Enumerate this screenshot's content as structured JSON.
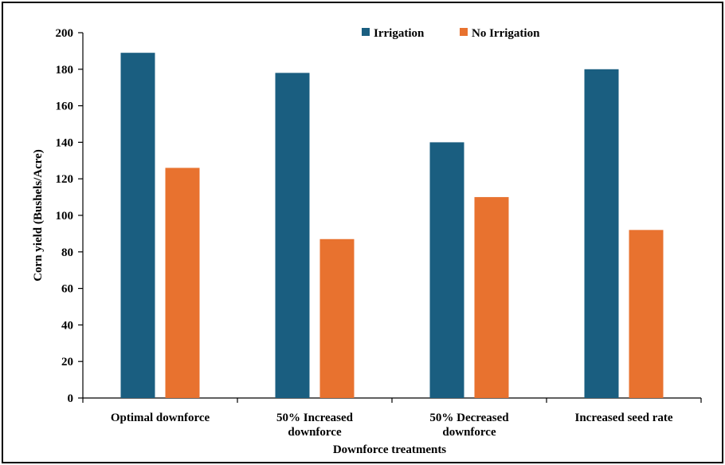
{
  "chart_data": {
    "type": "bar",
    "categories": [
      [
        "Optimal downforce"
      ],
      [
        "50% Increased",
        "downforce"
      ],
      [
        "50% Decreased",
        "downforce"
      ],
      [
        "Increased seed rate"
      ]
    ],
    "series": [
      {
        "name": "Irrigation",
        "color": "#1a5e80",
        "values": [
          189,
          178,
          140,
          180
        ]
      },
      {
        "name": "No Irrigation",
        "color": "#e8722f",
        "values": [
          126,
          87,
          110,
          92
        ]
      }
    ],
    "xlabel": "Downforce treatments",
    "ylabel": "Corn yield (Bushels/Acre)",
    "ylim": [
      0,
      200
    ],
    "yticks": [
      0,
      20,
      40,
      60,
      80,
      100,
      120,
      140,
      160,
      180,
      200
    ],
    "grid": false,
    "legend_position": "top-right"
  }
}
